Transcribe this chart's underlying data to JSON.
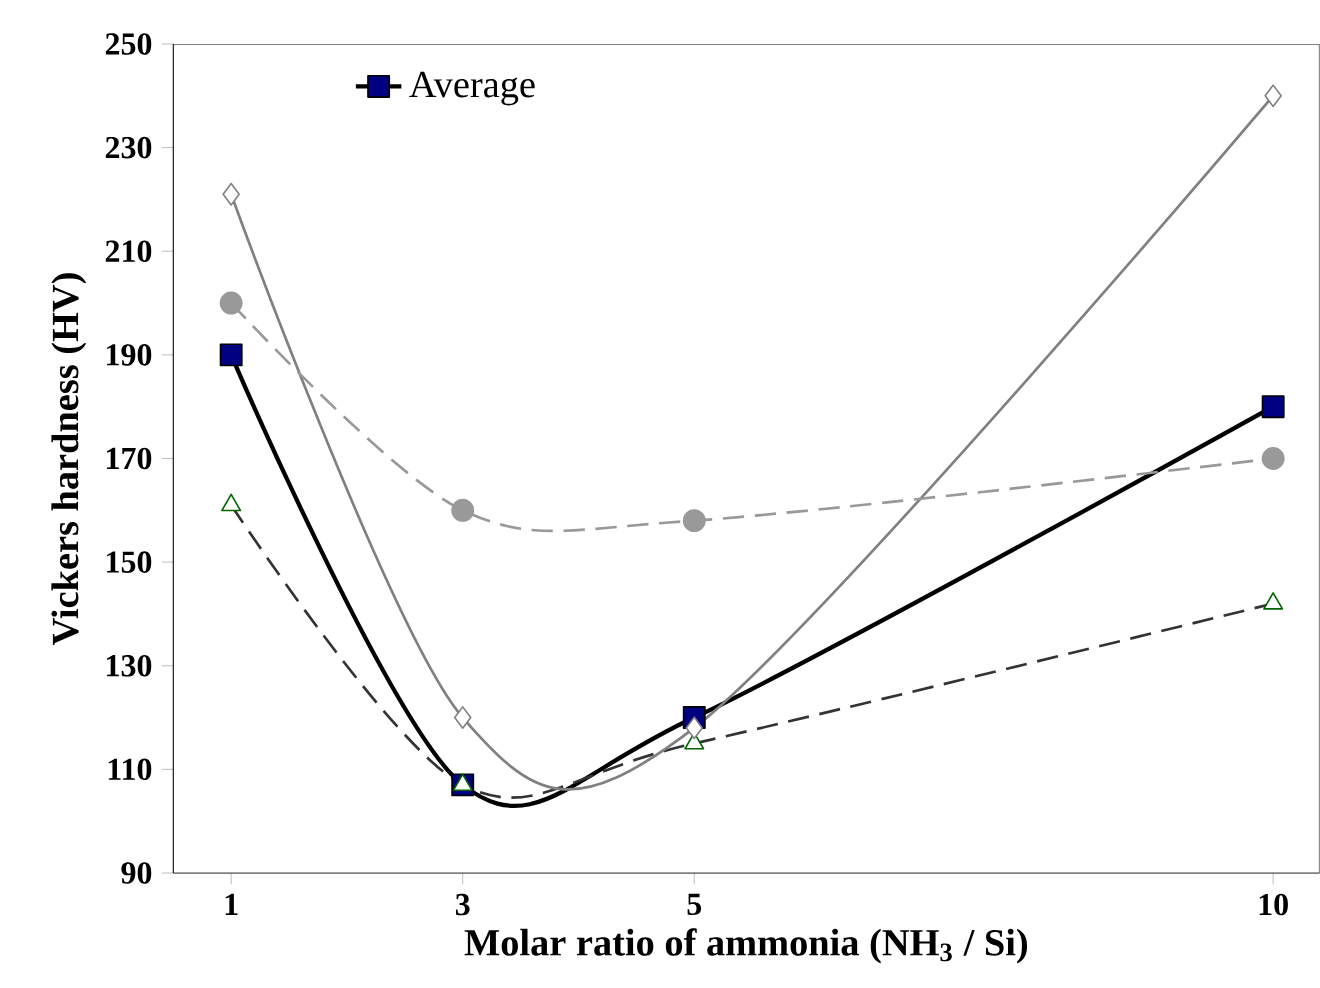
{
  "chart_data": {
    "type": "line",
    "xlabel": "Molar ratio of ammonia (NH$_{3}$ / Si)",
    "ylabel": "Vickers hardness (HV)",
    "x": [
      1,
      3,
      5,
      10
    ],
    "xlim": [
      0.5,
      10.4
    ],
    "xticks": [
      1,
      3,
      5,
      10
    ],
    "ylim": [
      90,
      250
    ],
    "yticks": [
      90,
      110,
      130,
      150,
      170,
      190,
      210,
      230,
      250
    ],
    "grid": false,
    "legend": "top left",
    "series": [
      {
        "name": "Average",
        "color": "#000000",
        "marker": "square",
        "line_style": "solid",
        "values": [
          190,
          107,
          120,
          180
        ]
      },
      {
        "color": "#333333",
        "marker": "triangle",
        "line_style": "dashed",
        "values": [
          161,
          107,
          115,
          142
        ]
      },
      {
        "color": "#808080",
        "marker": "diamond",
        "line_style": "solid",
        "values": [
          221,
          120,
          118,
          240
        ]
      },
      {
        "color": "#999999",
        "marker": "circle",
        "line_style": "dashed",
        "values": [
          200,
          160,
          158,
          170
        ]
      }
    ]
  }
}
